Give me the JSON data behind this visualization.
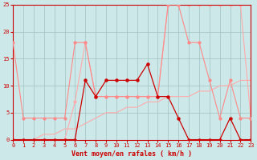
{
  "x": [
    0,
    1,
    2,
    3,
    4,
    5,
    6,
    7,
    8,
    9,
    10,
    11,
    12,
    13,
    14,
    15,
    16,
    17,
    18,
    19,
    20,
    21,
    22,
    23
  ],
  "series_dark_red_y": [
    0,
    0,
    0,
    0,
    0,
    0,
    0,
    11,
    8,
    11,
    11,
    11,
    11,
    14,
    8,
    8,
    4,
    0,
    0,
    0,
    0,
    4,
    0,
    0
  ],
  "series_med_pink_y": [
    18,
    4,
    4,
    4,
    4,
    4,
    18,
    18,
    8,
    8,
    8,
    8,
    8,
    8,
    8,
    25,
    25,
    18,
    18,
    11,
    4,
    11,
    4,
    4
  ],
  "series_light_pink_y": [
    0,
    0,
    0,
    0,
    0,
    0,
    7,
    18,
    8,
    8,
    8,
    8,
    8,
    8,
    8,
    25,
    25,
    25,
    25,
    25,
    25,
    25,
    25,
    4
  ],
  "series_trend_y": [
    0,
    0,
    0,
    1,
    1,
    2,
    2,
    3,
    4,
    5,
    5,
    6,
    6,
    7,
    7,
    8,
    8,
    8,
    9,
    9,
    10,
    10,
    11,
    11
  ],
  "bg_color": "#cce8e8",
  "grid_color": "#a0c0c0",
  "dark_red": "#cc0000",
  "med_pink": "#ff8888",
  "light_pink": "#ffaaaa",
  "trend_color": "#ff8888",
  "xlabel": "Vent moyen/en rafales ( km/h )",
  "xlim": [
    0,
    23
  ],
  "ylim": [
    0,
    25
  ],
  "yticks": [
    0,
    5,
    10,
    15,
    20,
    25
  ],
  "xticks": [
    0,
    1,
    2,
    3,
    4,
    5,
    6,
    7,
    8,
    9,
    10,
    11,
    12,
    13,
    14,
    15,
    16,
    17,
    18,
    19,
    20,
    21,
    22,
    23
  ]
}
